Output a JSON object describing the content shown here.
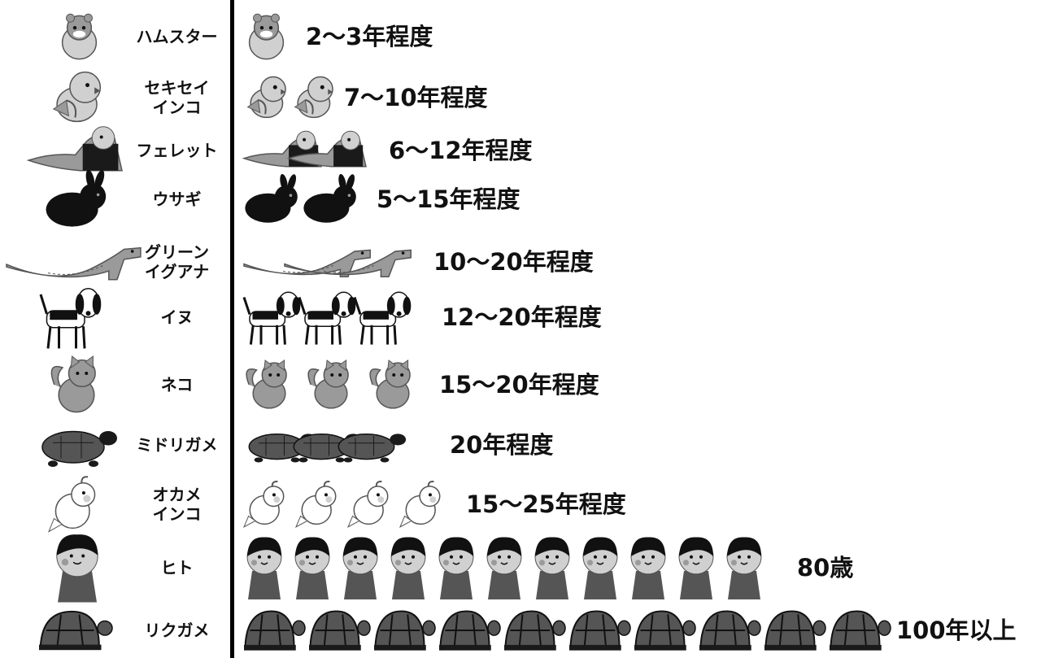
{
  "chart_data": {
    "type": "pictograph",
    "rows": [
      {
        "animal": "ハムスター",
        "icon": "hamster-icon",
        "icon_count": 1,
        "range_years": [
          2,
          3
        ],
        "label": "2～3年程度"
      },
      {
        "animal": "セキセイ\nインコ",
        "icon": "budgerigar-icon",
        "icon_count": 2,
        "range_years": [
          7,
          10
        ],
        "label": "7～10年程度"
      },
      {
        "animal": "フェレット",
        "icon": "ferret-icon",
        "icon_count": 2,
        "range_years": [
          6,
          12
        ],
        "label": "6～12年程度"
      },
      {
        "animal": "ウサギ",
        "icon": "rabbit-icon",
        "icon_count": 2,
        "range_years": [
          5,
          15
        ],
        "label": "5～15年程度"
      },
      {
        "animal": "グリーン\nイグアナ",
        "icon": "iguana-icon",
        "icon_count": 2,
        "range_years": [
          10,
          20
        ],
        "label": "10～20年程度"
      },
      {
        "animal": "イヌ",
        "icon": "dog-icon",
        "icon_count": 3,
        "range_years": [
          12,
          20
        ],
        "label": "12～20年程度"
      },
      {
        "animal": "ネコ",
        "icon": "cat-icon",
        "icon_count": 3,
        "range_years": [
          15,
          20
        ],
        "label": "15～20年程度"
      },
      {
        "animal": "ミドリガメ",
        "icon": "red-eared-slider-icon",
        "icon_count": 3,
        "range_years": [
          20,
          20
        ],
        "label": "20年程度"
      },
      {
        "animal": "オカメ\nインコ",
        "icon": "cockatiel-icon",
        "icon_count": 4,
        "range_years": [
          15,
          25
        ],
        "label": "15～25年程度"
      },
      {
        "animal": "ヒト",
        "icon": "human-icon",
        "icon_count": 11,
        "range_years": [
          80,
          80
        ],
        "label": "80歳"
      },
      {
        "animal": "リクガメ",
        "icon": "tortoise-icon",
        "icon_count": 10,
        "range_years": [
          100,
          100
        ],
        "label": "100年以上"
      }
    ],
    "colors": {
      "ink": "#111111",
      "dark": "#1a1a1a",
      "mid": "#555555",
      "light": "#9a9a9a",
      "pale": "#d0d0d0",
      "white": "#ffffff"
    }
  }
}
